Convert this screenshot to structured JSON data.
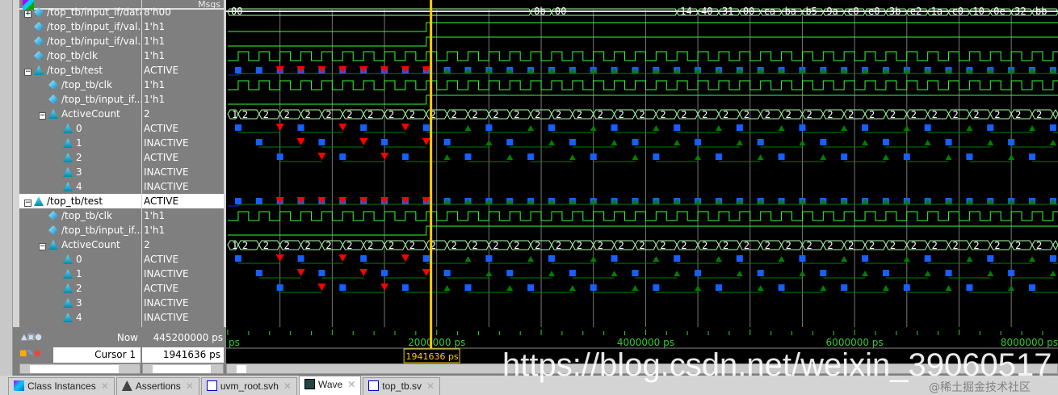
{
  "header": {
    "msgs_label": "Msgs"
  },
  "colors": {
    "wave_bg": "#000000",
    "signal": "#33ff33",
    "assert_line": "#007f00",
    "start": "#1560ff",
    "fail": "#ff0000",
    "pass": "#007f00",
    "cursor": "#ffcc00",
    "bus_outline": "#aaffaa"
  },
  "timescale": {
    "unit": "ps",
    "ticks": [
      {
        "t": 0,
        "label": "ps"
      },
      {
        "t": 2000000,
        "label": "2000000 ps"
      },
      {
        "t": 4000000,
        "label": "4000000 ps"
      },
      {
        "t": 6000000,
        "label": "6000000 ps"
      },
      {
        "t": 8000000,
        "label": "8000000 ps"
      }
    ]
  },
  "clock": {
    "period": 200000,
    "first_rise": 100000
  },
  "rows": [
    {
      "name": "/top_tb/input_if/data",
      "value": "8'h00",
      "indent": 0,
      "expand": "+",
      "icon": "diamond-icon",
      "wave": "bus"
    },
    {
      "name": "/top_tb/input_if/val...",
      "value": "1'h1",
      "indent": 0,
      "icon": "diamond-icon",
      "wave": "valid"
    },
    {
      "name": "/top_tb/input_if/val...",
      "value": "1'h1",
      "indent": 0,
      "icon": "diamond-icon",
      "wave": "valid"
    },
    {
      "name": "/top_tb/clk",
      "value": "1'h1",
      "indent": 0,
      "icon": "diamond-icon",
      "wave": "clock"
    },
    {
      "name": "/top_tb/test",
      "value": "ACTIVE",
      "indent": 0,
      "expand": "−",
      "icon": "assertion-icon",
      "wave": "test"
    },
    {
      "name": "/top_tb/clk",
      "value": "1'h1",
      "indent": 1,
      "icon": "diamond-icon",
      "wave": "clock"
    },
    {
      "name": "/top_tb/input_if...",
      "value": "1'h1",
      "indent": 1,
      "icon": "diamond-icon",
      "wave": "valid"
    },
    {
      "name": "ActiveCount",
      "value": "2",
      "indent": 1,
      "expand": "−",
      "icon": "assertion-icon",
      "wave": "count"
    },
    {
      "name": "0",
      "value": "ACTIVE",
      "indent": 2,
      "icon": "assertion-icon",
      "wave": "sub0"
    },
    {
      "name": "1",
      "value": "INACTIVE",
      "indent": 2,
      "icon": "assertion-icon",
      "wave": "sub1"
    },
    {
      "name": "2",
      "value": "ACTIVE",
      "indent": 2,
      "icon": "assertion-icon",
      "wave": "sub2"
    },
    {
      "name": "3",
      "value": "INACTIVE",
      "indent": 2,
      "icon": "assertion-icon",
      "wave": "none"
    },
    {
      "name": "4",
      "value": "INACTIVE",
      "indent": 2,
      "icon": "assertion-icon",
      "wave": "none"
    },
    {
      "name": "/top_tb/test",
      "value": "ACTIVE",
      "indent": 0,
      "expand": "−",
      "icon": "assertion-icon",
      "wave": "test",
      "selected": true
    },
    {
      "name": "/top_tb/clk",
      "value": "1'h1",
      "indent": 1,
      "icon": "diamond-icon",
      "wave": "clock"
    },
    {
      "name": "/top_tb/input_if...",
      "value": "1'h1",
      "indent": 1,
      "icon": "diamond-icon",
      "wave": "valid"
    },
    {
      "name": "ActiveCount",
      "value": "2",
      "indent": 1,
      "expand": "−",
      "icon": "assertion-icon",
      "wave": "count"
    },
    {
      "name": "0",
      "value": "ACTIVE",
      "indent": 2,
      "icon": "assertion-icon",
      "wave": "sub0"
    },
    {
      "name": "1",
      "value": "INACTIVE",
      "indent": 2,
      "icon": "assertion-icon",
      "wave": "sub1"
    },
    {
      "name": "2",
      "value": "ACTIVE",
      "indent": 2,
      "icon": "assertion-icon",
      "wave": "sub2"
    },
    {
      "name": "3",
      "value": "INACTIVE",
      "indent": 2,
      "icon": "assertion-icon",
      "wave": "none"
    },
    {
      "name": "4",
      "value": "INACTIVE",
      "indent": 2,
      "icon": "assertion-icon",
      "wave": "none"
    }
  ],
  "valid_rise": 1900000,
  "fail_until": 1900000,
  "bus": [
    {
      "t": 0,
      "v": "00"
    },
    {
      "t": 2900000,
      "v": "0b"
    },
    {
      "t": 3100000,
      "v": "00"
    },
    {
      "t": 4300000,
      "v": "14"
    },
    {
      "t": 4500000,
      "v": "40"
    },
    {
      "t": 4700000,
      "v": "31"
    },
    {
      "t": 4900000,
      "v": "00"
    },
    {
      "t": 5100000,
      "v": "ca"
    },
    {
      "t": 5300000,
      "v": "ba"
    },
    {
      "t": 5500000,
      "v": "b5"
    },
    {
      "t": 5700000,
      "v": "9a"
    },
    {
      "t": 5900000,
      "v": "c0"
    },
    {
      "t": 6100000,
      "v": "e0"
    },
    {
      "t": 6300000,
      "v": "3b"
    },
    {
      "t": 6500000,
      "v": "e2"
    },
    {
      "t": 6700000,
      "v": "1a"
    },
    {
      "t": 6900000,
      "v": "c0"
    },
    {
      "t": 7100000,
      "v": "10"
    },
    {
      "t": 7300000,
      "v": "0e"
    },
    {
      "t": 7500000,
      "v": "32"
    },
    {
      "t": 7700000,
      "v": "bb"
    }
  ],
  "count": {
    "first": "1",
    "rest": "2"
  },
  "status": {
    "now_label": "Now",
    "now_value": "445200000 ps",
    "cursor_label": "Cursor 1",
    "cursor_value": "1941636 ps",
    "cursor_time": 1941636
  },
  "tabs": [
    {
      "label": "Class Instances",
      "icon": "class-instances-icon"
    },
    {
      "label": "Assertions",
      "icon": "assertion-icon"
    },
    {
      "label": "uvm_root.svh",
      "icon": "source-file-icon"
    },
    {
      "label": "Wave",
      "icon": "wave-icon",
      "active": true
    },
    {
      "label": "top_tb.sv",
      "icon": "source-file-icon"
    }
  ],
  "watermark": {
    "url": "https://blog.csdn.net/weixin_39060517",
    "credit": "@稀土掘金技术社区"
  }
}
